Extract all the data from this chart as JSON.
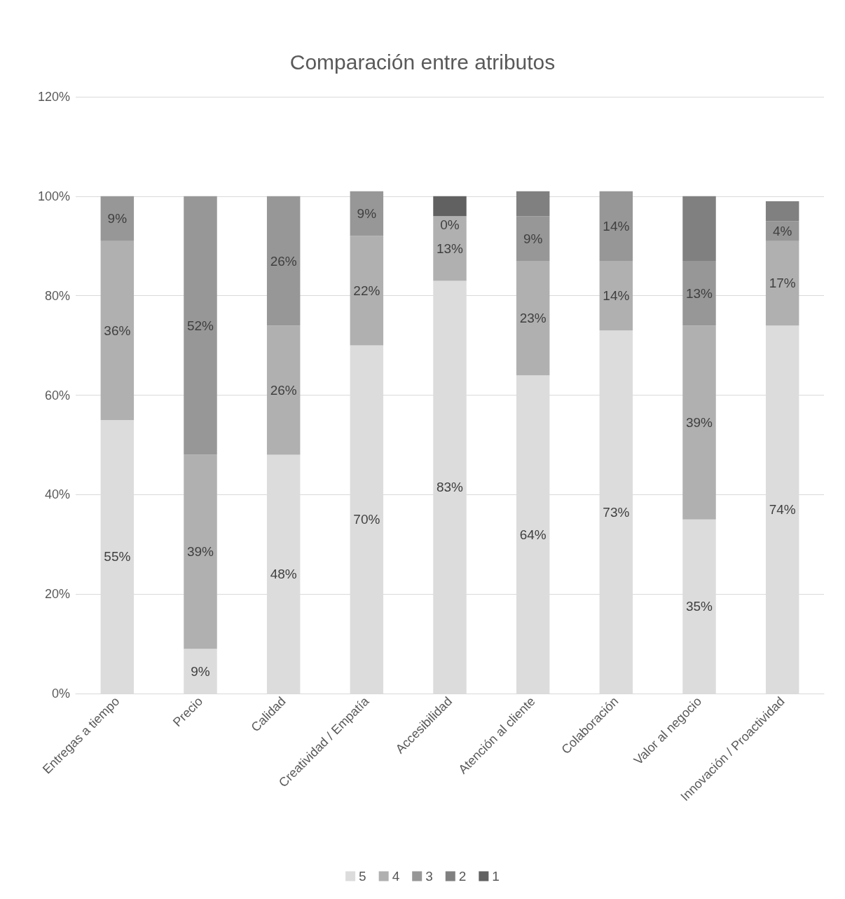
{
  "chart_data": {
    "type": "bar",
    "title": "Comparación entre atributos",
    "stacked": true,
    "categories": [
      "Entregas a tiempo",
      "Precio",
      "Calidad",
      "Creatividad / Empatía",
      "Accesibilidad",
      "Atención al cliente",
      "Colaboración",
      "Valor al negocio",
      "Innovación / Proactividad"
    ],
    "series": [
      {
        "name": "5",
        "color": "#dcdcdc",
        "values": [
          55,
          9,
          48,
          70,
          83,
          64,
          73,
          35,
          74
        ],
        "value_labels": [
          "55%",
          "9%",
          "48%",
          "70%",
          "83%",
          "64%",
          "73%",
          "35%",
          "74%"
        ]
      },
      {
        "name": "4",
        "color": "#b0b0b0",
        "values": [
          36,
          39,
          26,
          22,
          13,
          23,
          14,
          39,
          17
        ],
        "value_labels": [
          "36%",
          "39%",
          "26%",
          "22%",
          "13%",
          "23%",
          "14%",
          "39%",
          "17%"
        ]
      },
      {
        "name": "3",
        "color": "#979797",
        "values": [
          9,
          52,
          26,
          9,
          0,
          9,
          14,
          13,
          4
        ],
        "value_labels": [
          "9%",
          "52%",
          "26%",
          "9%",
          "0%",
          "9%",
          "14%",
          "13%",
          "4%"
        ]
      },
      {
        "name": "2",
        "color": "#808080",
        "values": [
          0,
          0,
          0,
          0,
          0,
          5,
          0,
          13,
          4
        ]
      },
      {
        "name": "1",
        "color": "#616161",
        "values": [
          0,
          0,
          0,
          0,
          4,
          0,
          0,
          0,
          0
        ]
      }
    ],
    "ylim": [
      0,
      120
    ],
    "yticks": [
      {
        "value": 0,
        "label": "0%"
      },
      {
        "value": 20,
        "label": "20%"
      },
      {
        "value": 40,
        "label": "40%"
      },
      {
        "value": 60,
        "label": "60%"
      },
      {
        "value": 80,
        "label": "80%"
      },
      {
        "value": 100,
        "label": "100%"
      },
      {
        "value": 120,
        "label": "120%"
      }
    ],
    "grid": "y",
    "legend": "bottom"
  }
}
